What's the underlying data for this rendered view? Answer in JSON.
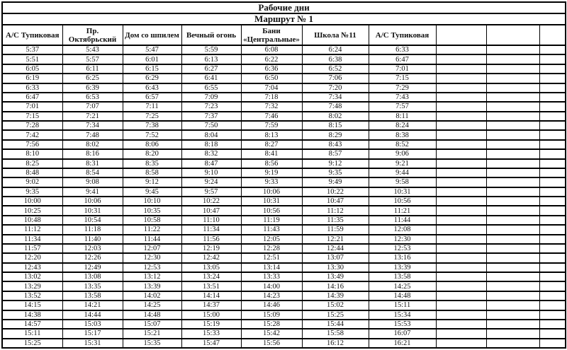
{
  "document": {
    "title_line1": "Рабочие дни",
    "title_line2": "Маршрут № 1"
  },
  "table": {
    "headers": [
      "А/С Тупиковая",
      "Пр. Октябрьский",
      "Дом со шпилем",
      "Вечный огонь",
      "Бани «Центральные»",
      "Школа №11",
      "А/С Тупиковая",
      "",
      "",
      ""
    ],
    "filled_columns": 7,
    "total_columns": 10,
    "rows": [
      [
        "5:37",
        "5:43",
        "5:47",
        "5:59",
        "6:08",
        "6:24",
        "6:33"
      ],
      [
        "5:51",
        "5:57",
        "6:01",
        "6:13",
        "6:22",
        "6:38",
        "6:47"
      ],
      [
        "6:05",
        "6:11",
        "6:15",
        "6:27",
        "6:36",
        "6:52",
        "7:01"
      ],
      [
        "6:19",
        "6:25",
        "6:29",
        "6:41",
        "6:50",
        "7:06",
        "7:15"
      ],
      [
        "6:33",
        "6:39",
        "6:43",
        "6:55",
        "7:04",
        "7:20",
        "7:29"
      ],
      [
        "6:47",
        "6:53",
        "6:57",
        "7:09",
        "7:18",
        "7:34",
        "7:43"
      ],
      [
        "7:01",
        "7:07",
        "7:11",
        "7:23",
        "7:32",
        "7:48",
        "7:57"
      ],
      [
        "7:15",
        "7:21",
        "7:25",
        "7:37",
        "7:46",
        "8:02",
        "8:11"
      ],
      [
        "7:28",
        "7:34",
        "7:38",
        "7:50",
        "7:59",
        "8:15",
        "8:24"
      ],
      [
        "7:42",
        "7:48",
        "7:52",
        "8:04",
        "8:13",
        "8:29",
        "8:38"
      ],
      [
        "7:56",
        "8:02",
        "8:06",
        "8:18",
        "8:27",
        "8:43",
        "8:52"
      ],
      [
        "8:10",
        "8:16",
        "8:20",
        "8:32",
        "8:41",
        "8:57",
        "9:06"
      ],
      [
        "8:25",
        "8:31",
        "8:35",
        "8:47",
        "8:56",
        "9:12",
        "9:21"
      ],
      [
        "8:48",
        "8:54",
        "8:58",
        "9:10",
        "9:19",
        "9:35",
        "9:44"
      ],
      [
        "9:02",
        "9:08",
        "9:12",
        "9:24",
        "9:33",
        "9:49",
        "9:58"
      ],
      [
        "9:35",
        "9:41",
        "9:45",
        "9:57",
        "10:06",
        "10:22",
        "10:31"
      ],
      [
        "10:00",
        "10:06",
        "10:10",
        "10:22",
        "10:31",
        "10:47",
        "10:56"
      ],
      [
        "10:25",
        "10:31",
        "10:35",
        "10:47",
        "10:56",
        "11:12",
        "11:21"
      ],
      [
        "10:48",
        "10:54",
        "10:58",
        "11:10",
        "11:19",
        "11:35",
        "11:44"
      ],
      [
        "11:12",
        "11:18",
        "11:22",
        "11:34",
        "11:43",
        "11:59",
        "12:08"
      ],
      [
        "11:34",
        "11:40",
        "11:44",
        "11:56",
        "12:05",
        "12:21",
        "12:30"
      ],
      [
        "11:57",
        "12:03",
        "12:07",
        "12:19",
        "12:28",
        "12:44",
        "12:53"
      ],
      [
        "12:20",
        "12:26",
        "12:30",
        "12:42",
        "12:51",
        "13:07",
        "13:16"
      ],
      [
        "12:43",
        "12:49",
        "12:53",
        "13:05",
        "13:14",
        "13:30",
        "13:39"
      ],
      [
        "13:02",
        "13:08",
        "13:12",
        "13:24",
        "13:33",
        "13:49",
        "13:58"
      ],
      [
        "13:29",
        "13:35",
        "13:39",
        "13:51",
        "14:00",
        "14:16",
        "14:25"
      ],
      [
        "13:52",
        "13:58",
        "14:02",
        "14:14",
        "14:23",
        "14:39",
        "14:48"
      ],
      [
        "14:15",
        "14:21",
        "14:25",
        "14:37",
        "14:46",
        "15:02",
        "15:11"
      ],
      [
        "14:38",
        "14:44",
        "14:48",
        "15:00",
        "15:09",
        "15:25",
        "15:34"
      ],
      [
        "14:57",
        "15:03",
        "15:07",
        "15:19",
        "15:28",
        "15:44",
        "15:53"
      ],
      [
        "15:11",
        "15:17",
        "15:21",
        "15:33",
        "15:42",
        "15:58",
        "16:07"
      ],
      [
        "15:25",
        "15:31",
        "15:35",
        "15:47",
        "15:56",
        "16:12",
        "16:21"
      ]
    ]
  },
  "colors": {
    "background": "#ffffff",
    "border": "#000000",
    "text": "#111111"
  }
}
